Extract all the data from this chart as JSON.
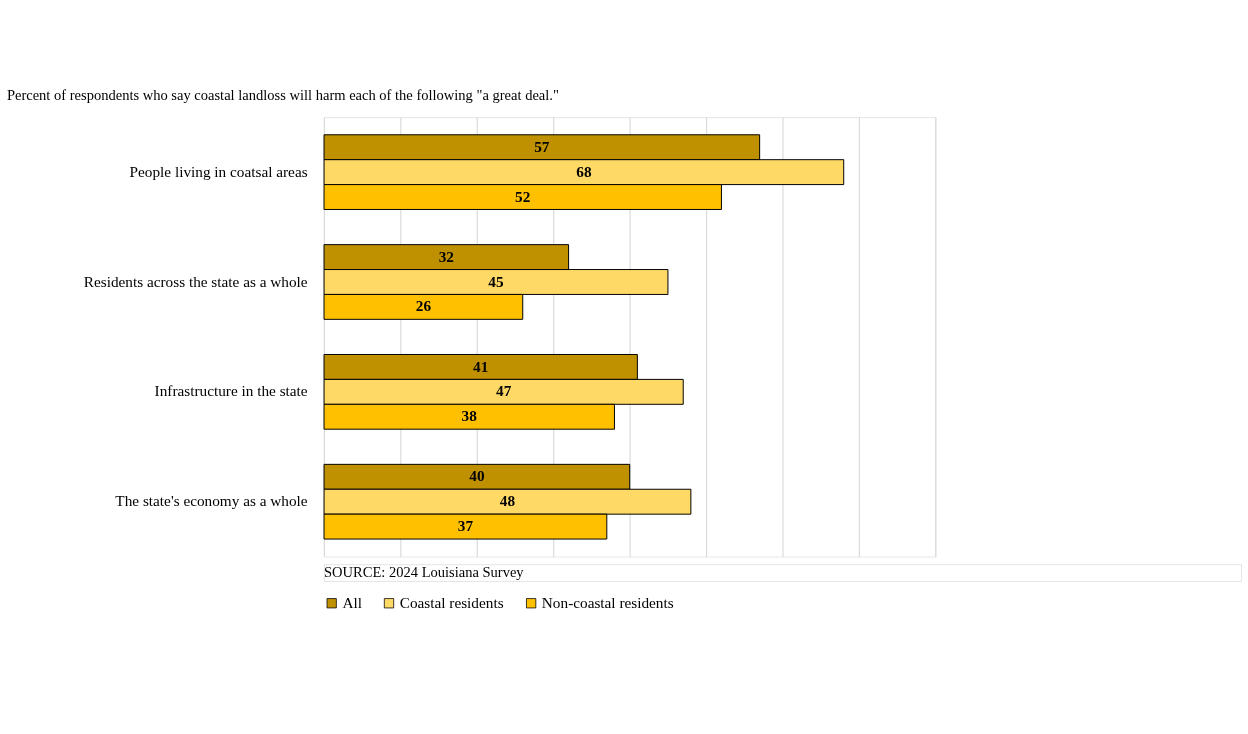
{
  "chart_data": {
    "type": "bar",
    "orientation": "horizontal",
    "title": "Percent of respondents who say coastal landloss will harm each of the following \"a great deal.\"",
    "categories": [
      "People living in coatsal areas",
      "Residents across the state as a whole",
      "Infrastructure in the state",
      "The state's economy as a whole"
    ],
    "series": [
      {
        "name": "All",
        "color": "#bf9000",
        "values": [
          57,
          32,
          41,
          40
        ]
      },
      {
        "name": "Coastal residents",
        "color": "#ffd966",
        "values": [
          68,
          45,
          47,
          48
        ]
      },
      {
        "name": "Non-coastal residents",
        "color": "#ffc000",
        "values": [
          52,
          26,
          38,
          37
        ]
      }
    ],
    "xlim": [
      0,
      80
    ],
    "xticks": [
      {
        "value": 0,
        "label": null
      },
      {
        "value": 10,
        "label": null
      },
      {
        "value": 20,
        "label": null
      },
      {
        "value": 30,
        "label": null
      },
      {
        "value": 40,
        "label": null
      },
      {
        "value": 50,
        "label": null
      },
      {
        "value": 60,
        "label": null
      },
      {
        "value": 70,
        "label": null
      },
      {
        "value": 80,
        "label": null
      }
    ],
    "tick_labels": "y",
    "grid": "x",
    "legend": "bottom",
    "data_labels": true,
    "annotations": [
      "SOURCE: 2024 Louisiana Survey"
    ]
  }
}
